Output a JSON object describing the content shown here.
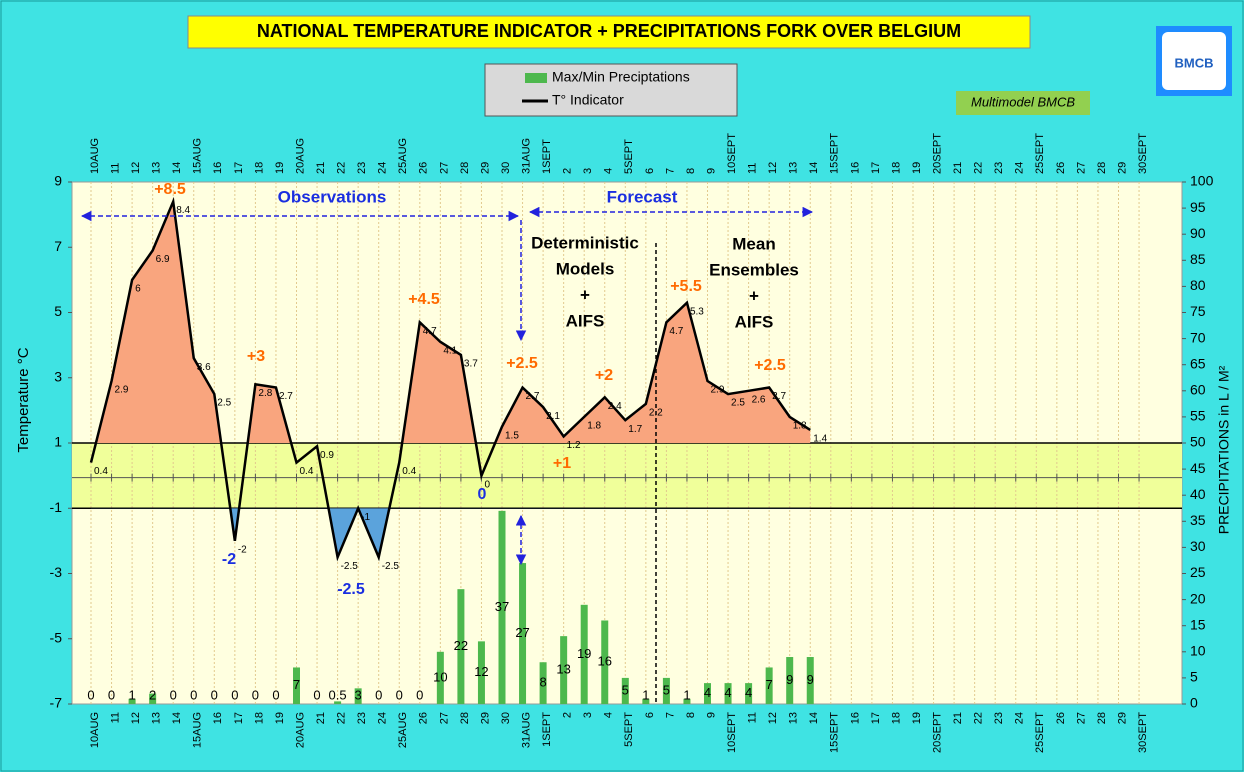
{
  "chart_data": {
    "type": "line",
    "title": "NATIONAL TEMPERATURE INDICATOR + PRECIPITATIONS FORK OVER  BELGIUM",
    "badge": "Multimodel BMCB",
    "logo": "BMCB",
    "y_label": "Temperature   °C",
    "y2_label": "PRECIPITATIONS in L / M²",
    "categories": [
      "10AUG",
      "11",
      "12",
      "13",
      "14",
      "15AUG",
      "16",
      "17",
      "18",
      "19",
      "20AUG",
      "21",
      "22",
      "23",
      "24",
      "25AUG",
      "26",
      "27",
      "28",
      "29",
      "30",
      "31AUG",
      "1SEPT",
      "2",
      "3",
      "4",
      "5SEPT",
      "6",
      "7",
      "8",
      "9",
      "10SEPT",
      "11",
      "12",
      "13",
      "14",
      "15SEPT",
      "16",
      "17",
      "18",
      "19",
      "20SEPT",
      "21",
      "22",
      "23",
      "24",
      "25SEPT",
      "26",
      "27",
      "28",
      "29",
      "30SEPT"
    ],
    "ylim": [
      -7,
      9
    ],
    "yticks": [
      -7,
      -5,
      -3,
      -1,
      1,
      3,
      5,
      7,
      9
    ],
    "y2lim": [
      0,
      100
    ],
    "y2ticks": [
      0,
      5,
      10,
      15,
      20,
      25,
      30,
      35,
      40,
      45,
      50,
      55,
      60,
      65,
      70,
      75,
      80,
      85,
      90,
      95,
      100
    ],
    "series": [
      {
        "name": "Max/Min Preciptations",
        "type": "bar",
        "axis": "y2",
        "color": "#4db84d",
        "values": [
          0,
          0,
          1,
          2,
          0,
          0,
          0,
          0,
          0,
          0,
          7,
          0,
          0.5,
          3,
          0,
          0,
          0,
          10,
          22,
          12,
          37,
          27,
          8,
          13,
          19,
          16,
          5,
          1,
          5,
          1,
          4,
          4,
          4,
          7,
          9,
          9,
          null,
          null,
          null,
          null,
          null,
          null,
          null,
          null,
          null,
          null,
          null,
          null,
          null,
          null,
          null,
          null
        ]
      },
      {
        "name": "T° Indicator",
        "type": "line",
        "color": "#000000",
        "values": [
          0.4,
          2.9,
          6,
          6.9,
          8.4,
          3.6,
          2.5,
          -2,
          2.8,
          2.7,
          0.4,
          0.9,
          -2.5,
          -1,
          -2.5,
          0.4,
          4.7,
          4.1,
          3.7,
          0,
          1.5,
          2.7,
          2.1,
          1.2,
          1.8,
          2.4,
          1.7,
          2.2,
          4.7,
          5.3,
          2.9,
          2.5,
          2.6,
          2.7,
          1.8,
          1.4,
          null,
          null,
          null,
          null,
          null,
          null,
          null,
          null,
          null,
          null,
          null,
          null,
          null,
          null,
          null,
          null
        ]
      }
    ],
    "annotations": [
      "+8.5",
      "+3",
      "-2",
      "-2.5",
      "+4.5",
      "0",
      "+2.5",
      "+1",
      "+2",
      "+5.5",
      "+2.5",
      "Observations",
      "Forecast"
    ],
    "deterministic": [
      "Deterministic",
      "Models",
      "+",
      "AIFS"
    ],
    "ensembles": [
      "Mean",
      "Ensembles",
      "+",
      "AIFS"
    ]
  }
}
